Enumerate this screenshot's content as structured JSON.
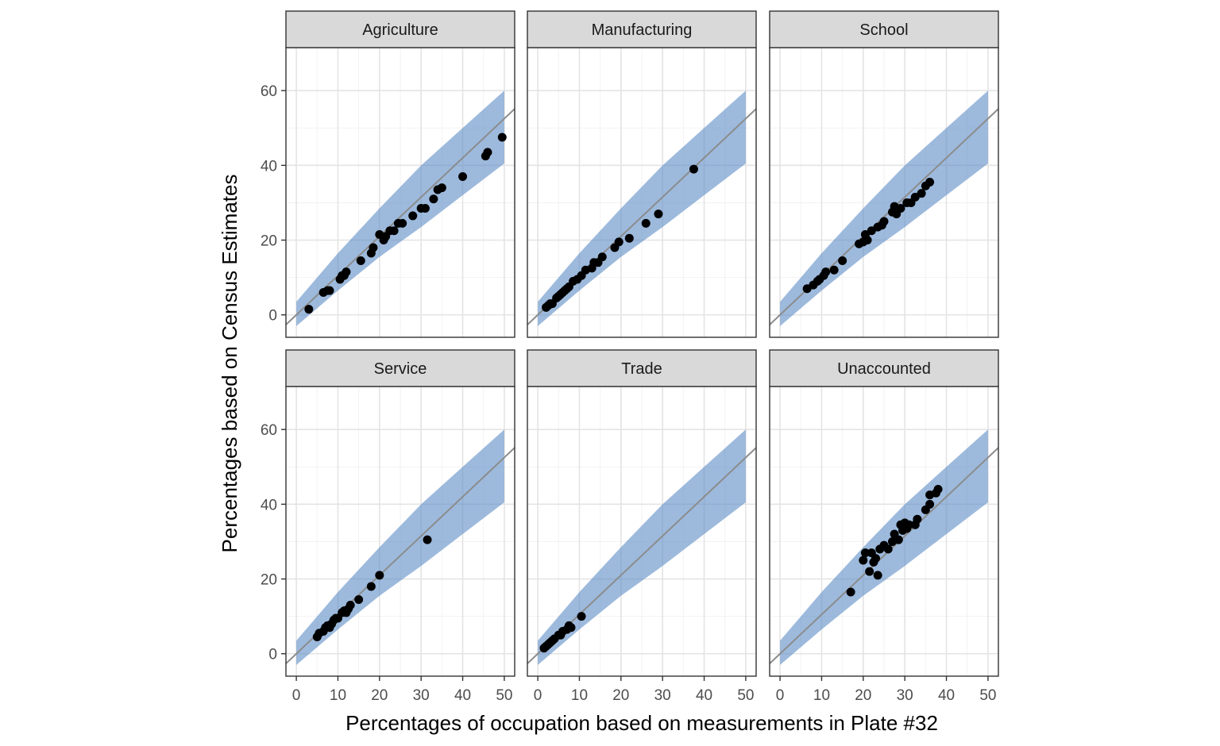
{
  "chart_data": {
    "type": "scatter",
    "xlabel": "Percentages of occupation based on measurements in Plate #32",
    "ylabel": "Percentages based on Census Estimates",
    "xlim": [
      -2.5,
      52.5
    ],
    "ylim": [
      -6,
      71.5
    ],
    "x_ticks": [
      0,
      10,
      20,
      30,
      40,
      50
    ],
    "y_ticks": [
      0,
      20,
      40,
      60
    ],
    "grid": true,
    "facet_layout": "2 rows x 3 columns",
    "reference_line": {
      "intercept": 0,
      "slope": 1.05,
      "color": "#8c8c8c"
    },
    "band": {
      "color": "#5b8cc6",
      "x": [
        0,
        10,
        20,
        30,
        40,
        50
      ],
      "lower": [
        -3,
        6.5,
        15.5,
        23.5,
        32,
        40.5
      ],
      "upper": [
        3.5,
        16.5,
        28.5,
        40,
        50,
        60
      ]
    },
    "panels": [
      {
        "name": "Agriculture",
        "points": [
          [
            3,
            1.5
          ],
          [
            6.5,
            6
          ],
          [
            7.5,
            6.5
          ],
          [
            8,
            6.5
          ],
          [
            10.5,
            9.5
          ],
          [
            11,
            10.5
          ],
          [
            11.5,
            10.5
          ],
          [
            12,
            11.5
          ],
          [
            15.5,
            14.5
          ],
          [
            18,
            16.5
          ],
          [
            18.5,
            18
          ],
          [
            20,
            21.5
          ],
          [
            21,
            20
          ],
          [
            21.5,
            21
          ],
          [
            22.5,
            22.5
          ],
          [
            23.5,
            22.5
          ],
          [
            24.5,
            24.5
          ],
          [
            25.5,
            24.5
          ],
          [
            28,
            26.5
          ],
          [
            30,
            28.5
          ],
          [
            31,
            28.5
          ],
          [
            33,
            31
          ],
          [
            34,
            33.5
          ],
          [
            35,
            34
          ],
          [
            40,
            37
          ],
          [
            45.5,
            42.5
          ],
          [
            46,
            43.5
          ],
          [
            49.5,
            47.5
          ]
        ]
      },
      {
        "name": "Manufacturing",
        "points": [
          [
            2,
            2
          ],
          [
            2.5,
            2.5
          ],
          [
            3,
            3
          ],
          [
            3.5,
            3
          ],
          [
            4.5,
            4.5
          ],
          [
            5,
            5
          ],
          [
            5.5,
            5.5
          ],
          [
            6,
            6
          ],
          [
            6.5,
            6.5
          ],
          [
            7,
            7
          ],
          [
            7.5,
            7.5
          ],
          [
            8.5,
            9
          ],
          [
            9.5,
            9.5
          ],
          [
            10.5,
            10.5
          ],
          [
            11.5,
            12
          ],
          [
            13,
            12.5
          ],
          [
            13.5,
            14
          ],
          [
            14.5,
            14
          ],
          [
            15.5,
            15.5
          ],
          [
            18.5,
            18
          ],
          [
            19.5,
            19.5
          ],
          [
            22,
            20.5
          ],
          [
            26,
            24.5
          ],
          [
            29,
            27
          ],
          [
            37.5,
            39
          ]
        ]
      },
      {
        "name": "School",
        "points": [
          [
            6.5,
            7
          ],
          [
            8,
            8
          ],
          [
            9,
            9
          ],
          [
            9.5,
            9.5
          ],
          [
            10.5,
            10.5
          ],
          [
            11,
            11.5
          ],
          [
            13,
            12
          ],
          [
            15,
            14.5
          ],
          [
            19,
            19
          ],
          [
            20,
            19.5
          ],
          [
            20.5,
            21.5
          ],
          [
            21,
            20
          ],
          [
            22,
            22.5
          ],
          [
            23.5,
            23.5
          ],
          [
            24.5,
            24
          ],
          [
            25,
            25
          ],
          [
            27,
            27.5
          ],
          [
            27.5,
            29
          ],
          [
            28,
            27
          ],
          [
            29,
            28.5
          ],
          [
            30.5,
            30
          ],
          [
            31.5,
            30
          ],
          [
            32.5,
            31.5
          ],
          [
            34,
            32.5
          ],
          [
            35,
            34.5
          ],
          [
            36,
            35.5
          ]
        ]
      },
      {
        "name": "Service",
        "points": [
          [
            5,
            4.5
          ],
          [
            5.5,
            5.5
          ],
          [
            6.5,
            6
          ],
          [
            7,
            7
          ],
          [
            7.5,
            7.5
          ],
          [
            8,
            7
          ],
          [
            8.5,
            8
          ],
          [
            9,
            9
          ],
          [
            9.5,
            9.5
          ],
          [
            10,
            9.5
          ],
          [
            11,
            11
          ],
          [
            11.5,
            11.5
          ],
          [
            12,
            11
          ],
          [
            12.5,
            12
          ],
          [
            13,
            13
          ],
          [
            15,
            14.5
          ],
          [
            18,
            18
          ],
          [
            20,
            21
          ],
          [
            31.5,
            30.5
          ]
        ]
      },
      {
        "name": "Trade",
        "points": [
          [
            1.5,
            1.5
          ],
          [
            2,
            2
          ],
          [
            2.5,
            2.5
          ],
          [
            3,
            3
          ],
          [
            3.5,
            3.5
          ],
          [
            4,
            4
          ],
          [
            5,
            5
          ],
          [
            5.5,
            5
          ],
          [
            6,
            6
          ],
          [
            7,
            6.5
          ],
          [
            7.5,
            7.5
          ],
          [
            8,
            7
          ],
          [
            10.5,
            10
          ]
        ]
      },
      {
        "name": "Unaccounted",
        "points": [
          [
            17,
            16.5
          ],
          [
            20,
            25
          ],
          [
            20.5,
            27
          ],
          [
            21.5,
            22
          ],
          [
            22,
            27
          ],
          [
            22.5,
            24.5
          ],
          [
            23,
            25.5
          ],
          [
            23.5,
            21
          ],
          [
            24,
            28
          ],
          [
            25,
            29
          ],
          [
            26,
            28
          ],
          [
            27,
            30
          ],
          [
            27.5,
            32
          ],
          [
            28.5,
            30.5
          ],
          [
            29,
            34.5
          ],
          [
            29.5,
            33
          ],
          [
            30,
            35
          ],
          [
            30.5,
            33.5
          ],
          [
            31,
            34.5
          ],
          [
            32.5,
            34.5
          ],
          [
            33,
            36
          ],
          [
            35,
            38.5
          ],
          [
            36,
            40
          ],
          [
            36,
            42.5
          ],
          [
            37.5,
            43
          ],
          [
            38,
            44
          ]
        ]
      }
    ]
  }
}
